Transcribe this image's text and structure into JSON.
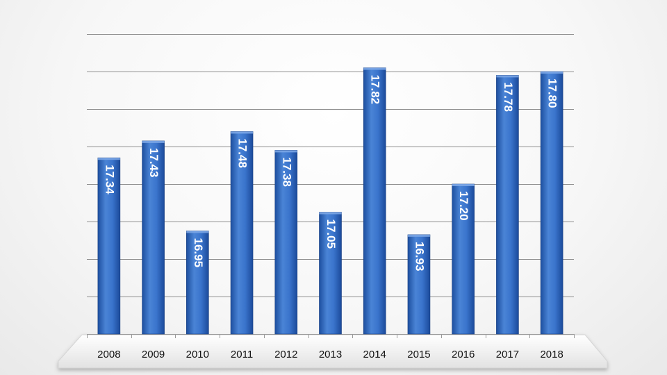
{
  "chart_data": {
    "type": "bar",
    "title": "",
    "xlabel": "",
    "ylabel": "",
    "categories": [
      "2008",
      "2009",
      "2010",
      "2011",
      "2012",
      "2013",
      "2014",
      "2015",
      "2016",
      "2017",
      "2018"
    ],
    "values": [
      17.34,
      17.43,
      16.95,
      17.48,
      17.38,
      17.05,
      17.82,
      16.93,
      17.2,
      17.78,
      17.8
    ],
    "value_labels": [
      "17.34",
      "17.43",
      "16.95",
      "17.48",
      "17.38",
      "17.05",
      "17.82",
      "16.93",
      "17.20",
      "17.78",
      "17.80"
    ],
    "ylim": [
      16.4,
      18.0
    ],
    "y_gridline_step": 0.2,
    "y_tick_labels_shown": false,
    "grid": true,
    "legend": "none",
    "data_label_orientation": "rotated-vertical-inside-bar",
    "colors": {
      "bar_light": "#5b8fdc",
      "bar_mid": "#2f67c4",
      "bar_dark": "#1b4a9a",
      "gridline": "#8c8c8c",
      "label_text": "#ffffff",
      "axis_text": "#111111"
    }
  }
}
